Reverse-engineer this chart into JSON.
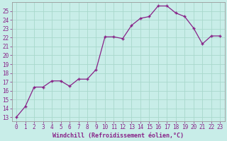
{
  "x": [
    0,
    1,
    2,
    3,
    4,
    5,
    6,
    7,
    8,
    9,
    10,
    11,
    12,
    13,
    14,
    15,
    16,
    17,
    18,
    19,
    20,
    21,
    22,
    23
  ],
  "y": [
    13.0,
    14.2,
    16.4,
    16.4,
    17.1,
    17.1,
    16.5,
    17.3,
    17.3,
    18.4,
    22.1,
    22.1,
    21.9,
    23.4,
    24.2,
    24.4,
    25.6,
    25.6,
    24.8,
    24.4,
    23.1,
    21.3,
    22.2,
    22.2
  ],
  "line_color": "#882288",
  "marker": "+",
  "bg_color": "#c8ede8",
  "grid_color": "#a8d8cc",
  "xlabel": "Windchill (Refroidissement éolien,°C)",
  "ylabel_ticks": [
    13,
    14,
    15,
    16,
    17,
    18,
    19,
    20,
    21,
    22,
    23,
    24,
    25
  ],
  "ylim": [
    12.5,
    26.0
  ],
  "xlim": [
    -0.5,
    23.5
  ],
  "label_color": "#882288",
  "tick_fontsize": 5.5,
  "xlabel_fontsize": 6.0
}
